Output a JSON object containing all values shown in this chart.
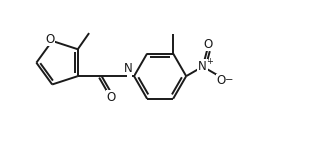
{
  "bg_color": "#ffffff",
  "line_color": "#1a1a1a",
  "line_width": 1.4,
  "font_size": 8.5,
  "figsize": [
    3.22,
    1.54
  ],
  "dpi": 100,
  "xlim": [
    0.0,
    9.5
  ],
  "ylim": [
    0.0,
    4.8
  ]
}
